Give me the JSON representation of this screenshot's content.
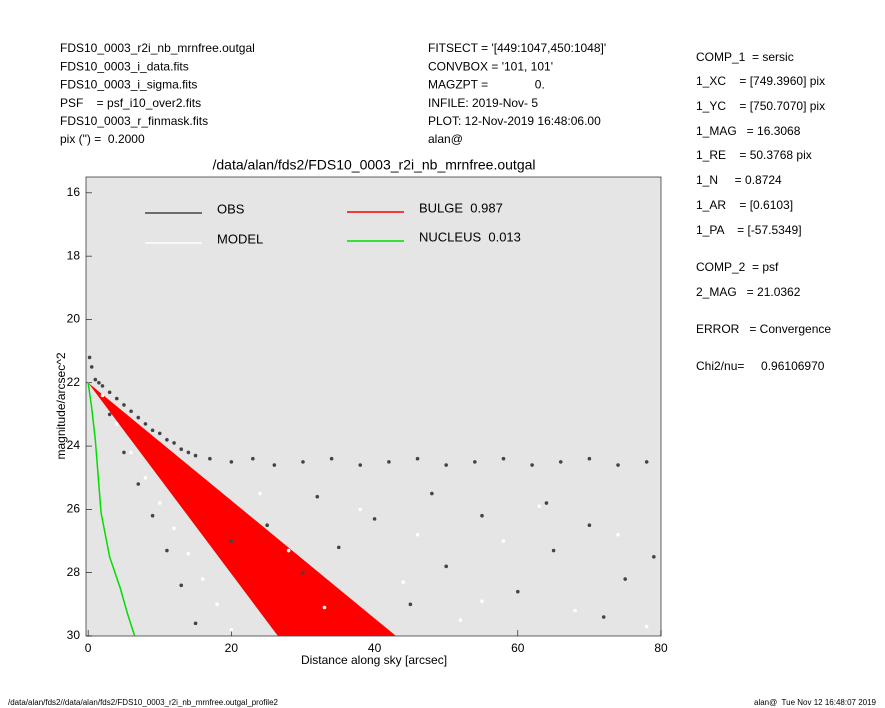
{
  "header": {
    "left": [
      "FDS10_0003_r2i_nb_mrnfree.outgal",
      "FDS10_0003_i_data.fits",
      "FDS10_0003_i_sigma.fits",
      "PSF    = psf_i10_over2.fits",
      "FDS10_0003_r_finmask.fits",
      "pix (\") =  0.2000"
    ],
    "middle": [
      "FITSECT = '[449:1047,450:1048]'",
      "CONVBOX = '101, 101'",
      "MAGZPT =              0.",
      "INFILE: 2019-Nov- 5",
      "PLOT: 12-Nov-2019 16:48:06.00",
      "alan@"
    ],
    "right": [
      "COMP_1  = sersic",
      "1_XC    = [749.3960] pix",
      "1_YC    = [750.7070] pix",
      "1_MAG   = 16.3068",
      "1_RE    = 50.3768 pix",
      "1_N     = 0.8724",
      "1_AR    = [0.6103]",
      "1_PA    = [-57.5349]",
      "COMP_2  = psf",
      "2_MAG   = 21.0362",
      "ERROR   = Convergence",
      "Chi2/nu=     0.96106970"
    ]
  },
  "footer": {
    "left": "/data/alan/fds2//data/alan/fds2/FDS10_0003_r2i_nb_mrnfree.outgal_profile2",
    "right": "alan@  Tue Nov 12 16:48:07 2019"
  },
  "chart_data": {
    "type": "scatter",
    "title": "/data/alan/fds2/FDS10_0003_r2i_nb_mrnfree.outgal",
    "xlabel": "Distance along sky [arcsec]",
    "ylabel": "magnitude/arcsec^2",
    "xlim": [
      -0.3,
      80
    ],
    "ylim": [
      30,
      15.5
    ],
    "xticks": [
      0,
      20,
      40,
      60,
      80
    ],
    "yticks": [
      16,
      18,
      20,
      22,
      24,
      26,
      28,
      30
    ],
    "series": [
      {
        "name": "OBS",
        "color": "#444444",
        "style": "points",
        "x": [
          0.2,
          0.5,
          1,
          1.5,
          2,
          3,
          4,
          5,
          6,
          7,
          8,
          9,
          10,
          11,
          12,
          13,
          14,
          15,
          17,
          20,
          23,
          26,
          30,
          34,
          38,
          42,
          46,
          50,
          54,
          58,
          62,
          66,
          70,
          74,
          78,
          3,
          5,
          7,
          9,
          11,
          13,
          15,
          20,
          25,
          30,
          35,
          40,
          45,
          50,
          55,
          60,
          65,
          70,
          75,
          79,
          32,
          48,
          64,
          72
        ],
        "values": [
          21.2,
          21.5,
          21.9,
          22.0,
          22.1,
          22.3,
          22.5,
          22.7,
          22.9,
          23.1,
          23.3,
          23.5,
          23.6,
          23.8,
          23.9,
          24.1,
          24.2,
          24.3,
          24.4,
          24.5,
          24.4,
          24.6,
          24.5,
          24.4,
          24.6,
          24.5,
          24.4,
          24.6,
          24.5,
          24.4,
          24.6,
          24.5,
          24.4,
          24.6,
          24.5,
          23.0,
          24.2,
          25.2,
          26.2,
          27.3,
          28.4,
          29.6,
          27.0,
          26.5,
          28.0,
          27.2,
          26.3,
          29.0,
          27.8,
          26.2,
          28.6,
          27.3,
          26.5,
          28.2,
          27.5,
          25.6,
          25.5,
          25.8,
          29.4
        ]
      },
      {
        "name": "MODEL",
        "color": "#ffffff",
        "style": "points",
        "x": [
          2,
          4,
          6,
          8,
          10,
          12,
          14,
          16,
          18,
          20,
          24,
          28,
          33,
          38,
          44,
          52,
          58,
          63,
          68,
          74,
          78,
          55,
          46
        ],
        "values": [
          22.4,
          23.3,
          24.2,
          25.0,
          25.8,
          26.6,
          27.4,
          28.2,
          29.0,
          29.8,
          25.5,
          27.3,
          29.1,
          26.0,
          28.3,
          29.5,
          27.0,
          25.9,
          29.2,
          26.8,
          29.7,
          28.9,
          26.8
        ]
      },
      {
        "name": "BULGE  0.987",
        "color": "#ff0000",
        "style": "area",
        "x": [
          0,
          26.5,
          43,
          0
        ],
        "values": [
          22,
          30,
          30,
          22
        ]
      },
      {
        "name": "NUCLEUS  0.013",
        "color": "#00dd00",
        "style": "line",
        "x": [
          0,
          0.5,
          1,
          1.8,
          3,
          4.5,
          5.5,
          6.5
        ],
        "values": [
          22,
          22.8,
          23.8,
          26.1,
          27.5,
          28.5,
          29.3,
          30
        ]
      }
    ]
  }
}
